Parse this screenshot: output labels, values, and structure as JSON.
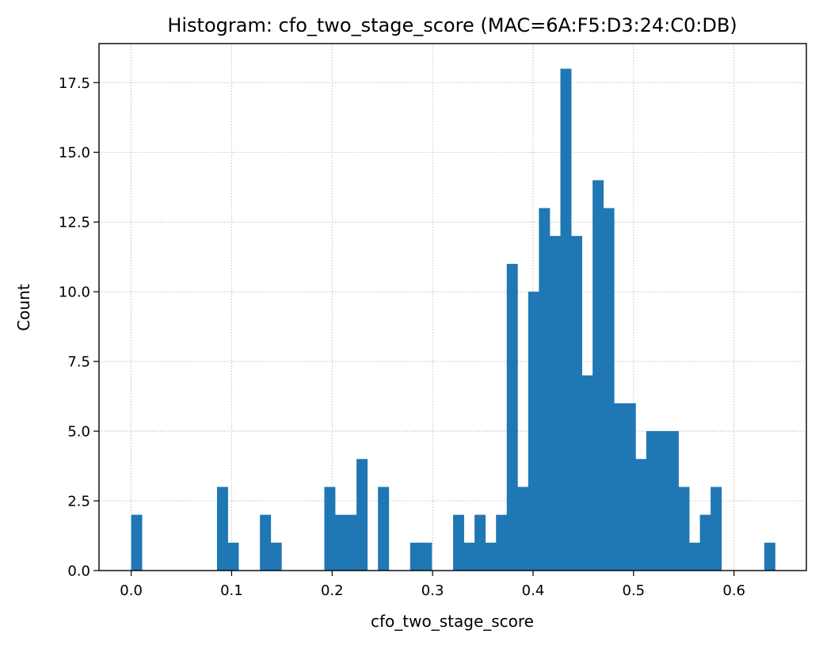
{
  "chart_data": {
    "type": "histogram",
    "title": "Histogram: cfo_two_stage_score (MAC=6A:F5:D3:24:C0:DB)",
    "xlabel": "cfo_two_stage_score",
    "ylabel": "Count",
    "xlim": [
      -0.032,
      0.672
    ],
    "ylim": [
      0,
      18.9
    ],
    "grid": true,
    "xticks": [
      0.0,
      0.1,
      0.2,
      0.3,
      0.4,
      0.5,
      0.6
    ],
    "xtick_labels": [
      "0.0",
      "0.1",
      "0.2",
      "0.3",
      "0.4",
      "0.5",
      "0.6"
    ],
    "yticks": [
      0.0,
      2.5,
      5.0,
      7.5,
      10.0,
      12.5,
      15.0,
      17.5
    ],
    "ytick_labels": [
      "0.0",
      "2.5",
      "5.0",
      "7.5",
      "10.0",
      "12.5",
      "15.0",
      "17.5"
    ],
    "bin_start": 0.0,
    "bin_width": 0.01068,
    "counts": [
      2,
      0,
      0,
      0,
      0,
      0,
      0,
      0,
      3,
      1,
      0,
      0,
      2,
      1,
      0,
      0,
      0,
      0,
      3,
      2,
      2,
      4,
      0,
      3,
      0,
      0,
      1,
      1,
      0,
      0,
      2,
      1,
      2,
      1,
      2,
      11,
      3,
      10,
      13,
      12,
      18,
      12,
      7,
      14,
      13,
      6,
      6,
      4,
      5,
      5,
      5,
      3,
      1,
      2,
      3,
      0,
      0,
      0,
      0,
      1
    ],
    "bar_color": "#1f77b4"
  }
}
